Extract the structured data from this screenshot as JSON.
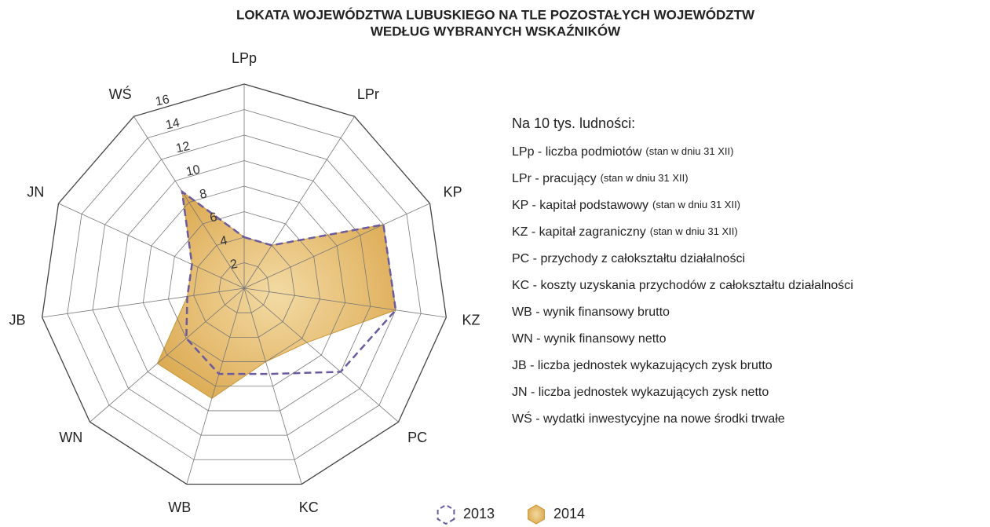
{
  "chart_data": {
    "type": "radar",
    "title": [
      "LOKATA WOJEWÓDZTWA LUBUSKIEGO NA TLE POZOSTAŁYCH WOJEWÓDZTW",
      "WEDŁUG WYBRANYCH WSKAŹNIKÓW"
    ],
    "categories": [
      "LPp",
      "LPr",
      "KP",
      "KZ",
      "PC",
      "KC",
      "WB",
      "WN",
      "JB",
      "JN",
      "WŚ"
    ],
    "series": [
      {
        "name": "2013",
        "color": "#6b5b9e",
        "style": "dashed",
        "values": [
          4,
          4,
          12,
          12,
          10,
          7,
          7,
          6,
          4.5,
          4.5,
          9
        ]
      },
      {
        "name": "2014",
        "color": "#dba64a",
        "style": "filled",
        "values": [
          4,
          4,
          12,
          12,
          6.5,
          6,
          9,
          9,
          4.5,
          4.5,
          9
        ]
      }
    ],
    "ylim": [
      0,
      16
    ],
    "yticks": [
      2,
      4,
      6,
      8,
      10,
      12,
      14,
      16
    ],
    "grid": true,
    "notes_heading": "Na 10 tys. ludności:",
    "notes": [
      {
        "text": "LPp - liczba podmiotów",
        "detail": "(stan w dniu 31 XII)"
      },
      {
        "text": "LPr - pracujący",
        "detail": "(stan w dniu 31 XII)"
      },
      {
        "text": "KP - kapitał podstawowy",
        "detail": "(stan w dniu 31 XII)"
      },
      {
        "text": "KZ - kapitał zagraniczny",
        "detail": "(stan w dniu 31 XII)"
      },
      {
        "text": "PC - przychody z całokształtu działalności"
      },
      {
        "text": "KC - koszty uzyskania przychodów z całokształtu działalności"
      },
      {
        "text": "WB - wynik finansowy brutto"
      },
      {
        "text": "WN - wynik finansowy netto"
      },
      {
        "text": "JB - liczba jednostek wykazujących zysk brutto"
      },
      {
        "text": "JN - liczba jednostek wykazujących zysk netto"
      },
      {
        "text": "WŚ - wydatki inwestycyjne na nowe środki trwałe"
      }
    ]
  }
}
